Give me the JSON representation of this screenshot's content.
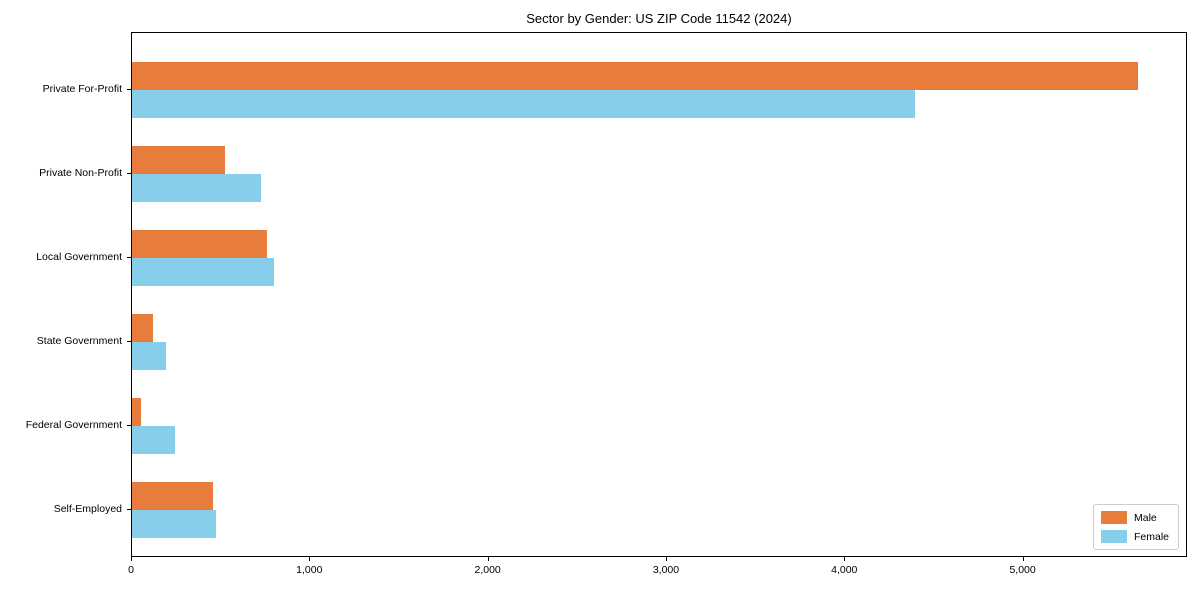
{
  "chart_data": {
    "type": "bar",
    "orientation": "horizontal",
    "title": "Sector by Gender: US ZIP Code 11542 (2024)",
    "categories": [
      "Private For-Profit",
      "Private Non-Profit",
      "Local Government",
      "State Government",
      "Federal Government",
      "Self-Employed"
    ],
    "series": [
      {
        "name": "Male",
        "color": "#E87C3C",
        "values": [
          5640,
          522,
          758,
          118,
          50,
          455
        ]
      },
      {
        "name": "Female",
        "color": "#87CEEB",
        "values": [
          4392,
          724,
          797,
          191,
          241,
          471
        ]
      }
    ],
    "xlim": [
      0,
      5922
    ],
    "xticks": [
      0,
      1000,
      2000,
      3000,
      4000,
      5000
    ],
    "xtick_labels": [
      "0",
      "1,000",
      "2,000",
      "3,000",
      "4,000",
      "5,000"
    ],
    "xlabel": "",
    "ylabel": "",
    "grid": false,
    "legend_position": "lower right",
    "frame_color": "#000000",
    "background_color": "#ffffff"
  }
}
